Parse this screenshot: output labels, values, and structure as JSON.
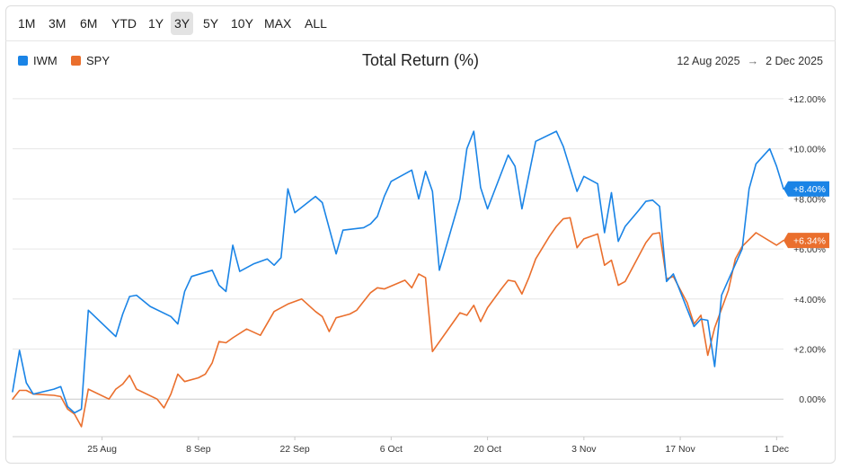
{
  "toolbar": {
    "ranges": [
      "1M",
      "3M",
      "6M",
      "YTD",
      "1Y",
      "3Y",
      "5Y",
      "10Y",
      "MAX",
      "ALL"
    ],
    "active_range": "3Y"
  },
  "header": {
    "title": "Total Return (%)",
    "start_date": "12 Aug 2025",
    "end_date": "2 Dec 2025",
    "arrow": "→"
  },
  "colors": {
    "IWM": "#1a84e6",
    "SPY": "#ea6f2d",
    "grid": "#e6e6e6",
    "zero_line": "#c8c8c8"
  },
  "chart_data": {
    "type": "line",
    "title": "Total Return (%)",
    "xlabel": "",
    "ylabel": "",
    "ylim": [
      -1.5,
      12.5
    ],
    "y_ticks": [
      0,
      2,
      4,
      6,
      8,
      10,
      12
    ],
    "y_tick_labels": [
      "0.00%",
      "+2.00%",
      "+4.00%",
      "+6.00%",
      "+8.00%",
      "+10.00%",
      "+12.00%"
    ],
    "x_ticks": [
      {
        "label": "25 Aug",
        "date": "2025-08-25"
      },
      {
        "label": "8 Sep",
        "date": "2025-09-08"
      },
      {
        "label": "22 Sep",
        "date": "2025-09-22"
      },
      {
        "label": "6 Oct",
        "date": "2025-10-06"
      },
      {
        "label": "20 Oct",
        "date": "2025-10-20"
      },
      {
        "label": "3 Nov",
        "date": "2025-11-03"
      },
      {
        "label": "17 Nov",
        "date": "2025-11-17"
      },
      {
        "label": "1 Dec",
        "date": "2025-12-01"
      }
    ],
    "x_range": [
      "2025-08-12",
      "2025-12-02"
    ],
    "grid": true,
    "legend": "top-left",
    "series": [
      {
        "name": "IWM",
        "end_label": "+8.40%",
        "points": [
          [
            "2025-08-12",
            0.3
          ],
          [
            "2025-08-13",
            1.95
          ],
          [
            "2025-08-14",
            0.65
          ],
          [
            "2025-08-15",
            0.2
          ],
          [
            "2025-08-18",
            0.4
          ],
          [
            "2025-08-19",
            0.5
          ],
          [
            "2025-08-20",
            -0.3
          ],
          [
            "2025-08-21",
            -0.55
          ],
          [
            "2025-08-22",
            -0.4
          ],
          [
            "2025-08-23",
            3.55
          ],
          [
            "2025-08-27",
            2.5
          ],
          [
            "2025-08-28",
            3.4
          ],
          [
            "2025-08-29",
            4.1
          ],
          [
            "2025-08-30",
            4.15
          ],
          [
            "2025-09-01",
            3.7
          ],
          [
            "2025-09-04",
            3.3
          ],
          [
            "2025-09-05",
            3.0
          ],
          [
            "2025-09-06",
            4.3
          ],
          [
            "2025-09-07",
            4.9
          ],
          [
            "2025-09-10",
            5.15
          ],
          [
            "2025-09-11",
            4.55
          ],
          [
            "2025-09-12",
            4.3
          ],
          [
            "2025-09-13",
            6.15
          ],
          [
            "2025-09-14",
            5.1
          ],
          [
            "2025-09-16",
            5.4
          ],
          [
            "2025-09-18",
            5.6
          ],
          [
            "2025-09-19",
            5.35
          ],
          [
            "2025-09-20",
            5.65
          ],
          [
            "2025-09-21",
            8.4
          ],
          [
            "2025-09-22",
            7.45
          ],
          [
            "2025-09-25",
            8.1
          ],
          [
            "2025-09-26",
            7.85
          ],
          [
            "2025-09-28",
            5.8
          ],
          [
            "2025-09-29",
            6.75
          ],
          [
            "2025-10-02",
            6.85
          ],
          [
            "2025-10-03",
            7.0
          ],
          [
            "2025-10-04",
            7.3
          ],
          [
            "2025-10-05",
            8.1
          ],
          [
            "2025-10-06",
            8.7
          ],
          [
            "2025-10-09",
            9.15
          ],
          [
            "2025-10-10",
            8.0
          ],
          [
            "2025-10-11",
            9.1
          ],
          [
            "2025-10-12",
            8.3
          ],
          [
            "2025-10-13",
            5.15
          ],
          [
            "2025-10-16",
            8.0
          ],
          [
            "2025-10-17",
            10.0
          ],
          [
            "2025-10-18",
            10.7
          ],
          [
            "2025-10-19",
            8.45
          ],
          [
            "2025-10-20",
            7.6
          ],
          [
            "2025-10-23",
            9.75
          ],
          [
            "2025-10-24",
            9.3
          ],
          [
            "2025-10-25",
            7.6
          ],
          [
            "2025-10-27",
            10.3
          ],
          [
            "2025-10-30",
            10.7
          ],
          [
            "2025-10-31",
            10.1
          ],
          [
            "2025-11-02",
            8.3
          ],
          [
            "2025-11-03",
            8.9
          ],
          [
            "2025-11-05",
            8.6
          ],
          [
            "2025-11-06",
            6.65
          ],
          [
            "2025-11-07",
            8.25
          ],
          [
            "2025-11-08",
            6.3
          ],
          [
            "2025-11-09",
            6.9
          ],
          [
            "2025-11-11",
            7.55
          ],
          [
            "2025-11-12",
            7.9
          ],
          [
            "2025-11-13",
            7.95
          ],
          [
            "2025-11-14",
            7.7
          ],
          [
            "2025-11-15",
            4.7
          ],
          [
            "2025-11-16",
            5.0
          ],
          [
            "2025-11-19",
            2.9
          ],
          [
            "2025-11-20",
            3.2
          ],
          [
            "2025-11-21",
            3.15
          ],
          [
            "2025-11-22",
            1.3
          ],
          [
            "2025-11-23",
            4.15
          ],
          [
            "2025-11-26",
            6.0
          ],
          [
            "2025-11-27",
            8.4
          ],
          [
            "2025-11-28",
            9.4
          ],
          [
            "2025-11-30",
            10.0
          ],
          [
            "2025-12-01",
            9.3
          ],
          [
            "2025-12-02",
            8.4
          ]
        ]
      },
      {
        "name": "SPY",
        "end_label": "+6.34%",
        "points": [
          [
            "2025-08-12",
            0.0
          ],
          [
            "2025-08-13",
            0.35
          ],
          [
            "2025-08-14",
            0.35
          ],
          [
            "2025-08-15",
            0.2
          ],
          [
            "2025-08-18",
            0.15
          ],
          [
            "2025-08-19",
            0.1
          ],
          [
            "2025-08-20",
            -0.4
          ],
          [
            "2025-08-21",
            -0.6
          ],
          [
            "2025-08-22",
            -1.1
          ],
          [
            "2025-08-23",
            0.4
          ],
          [
            "2025-08-26",
            0.0
          ],
          [
            "2025-08-27",
            0.4
          ],
          [
            "2025-08-28",
            0.6
          ],
          [
            "2025-08-29",
            0.95
          ],
          [
            "2025-08-30",
            0.4
          ],
          [
            "2025-09-02",
            0.0
          ],
          [
            "2025-09-03",
            -0.35
          ],
          [
            "2025-09-04",
            0.2
          ],
          [
            "2025-09-05",
            1.0
          ],
          [
            "2025-09-06",
            0.7
          ],
          [
            "2025-09-08",
            0.85
          ],
          [
            "2025-09-09",
            1.0
          ],
          [
            "2025-09-10",
            1.45
          ],
          [
            "2025-09-11",
            2.3
          ],
          [
            "2025-09-12",
            2.25
          ],
          [
            "2025-09-13",
            2.45
          ],
          [
            "2025-09-15",
            2.8
          ],
          [
            "2025-09-17",
            2.55
          ],
          [
            "2025-09-19",
            3.5
          ],
          [
            "2025-09-21",
            3.8
          ],
          [
            "2025-09-23",
            4.0
          ],
          [
            "2025-09-25",
            3.5
          ],
          [
            "2025-09-26",
            3.3
          ],
          [
            "2025-09-27",
            2.7
          ],
          [
            "2025-09-28",
            3.25
          ],
          [
            "2025-09-30",
            3.4
          ],
          [
            "2025-10-01",
            3.55
          ],
          [
            "2025-10-03",
            4.25
          ],
          [
            "2025-10-04",
            4.45
          ],
          [
            "2025-10-05",
            4.4
          ],
          [
            "2025-10-08",
            4.75
          ],
          [
            "2025-10-09",
            4.45
          ],
          [
            "2025-10-10",
            5.0
          ],
          [
            "2025-10-11",
            4.85
          ],
          [
            "2025-10-12",
            1.9
          ],
          [
            "2025-10-16",
            3.45
          ],
          [
            "2025-10-17",
            3.35
          ],
          [
            "2025-10-18",
            3.75
          ],
          [
            "2025-10-19",
            3.1
          ],
          [
            "2025-10-20",
            3.65
          ],
          [
            "2025-10-22",
            4.4
          ],
          [
            "2025-10-23",
            4.75
          ],
          [
            "2025-10-24",
            4.7
          ],
          [
            "2025-10-25",
            4.2
          ],
          [
            "2025-10-26",
            4.85
          ],
          [
            "2025-10-27",
            5.6
          ],
          [
            "2025-10-29",
            6.5
          ],
          [
            "2025-10-30",
            6.9
          ],
          [
            "2025-10-31",
            7.2
          ],
          [
            "2025-11-01",
            7.25
          ],
          [
            "2025-11-02",
            6.05
          ],
          [
            "2025-11-03",
            6.4
          ],
          [
            "2025-11-05",
            6.6
          ],
          [
            "2025-11-06",
            5.35
          ],
          [
            "2025-11-07",
            5.55
          ],
          [
            "2025-11-08",
            4.55
          ],
          [
            "2025-11-09",
            4.7
          ],
          [
            "2025-11-12",
            6.25
          ],
          [
            "2025-11-13",
            6.6
          ],
          [
            "2025-11-14",
            6.65
          ],
          [
            "2025-11-15",
            4.8
          ],
          [
            "2025-11-16",
            4.9
          ],
          [
            "2025-11-18",
            3.85
          ],
          [
            "2025-11-19",
            3.0
          ],
          [
            "2025-11-20",
            3.35
          ],
          [
            "2025-11-21",
            1.75
          ],
          [
            "2025-11-22",
            2.85
          ],
          [
            "2025-11-24",
            4.35
          ],
          [
            "2025-11-25",
            5.6
          ],
          [
            "2025-11-26",
            6.1
          ],
          [
            "2025-11-28",
            6.65
          ],
          [
            "2025-12-01",
            6.15
          ],
          [
            "2025-12-02",
            6.34
          ]
        ]
      }
    ]
  }
}
